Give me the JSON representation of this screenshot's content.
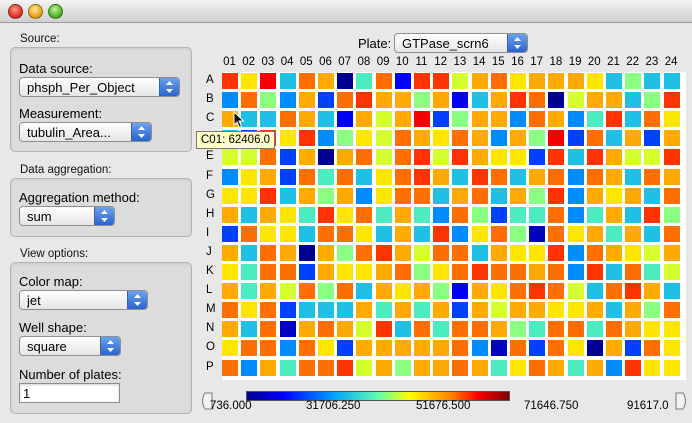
{
  "left_panel": {
    "source": {
      "section_label": "Source:",
      "data_source_label": "Data source:",
      "data_source_value": "phsph_Per_Object",
      "measurement_label": "Measurement:",
      "measurement_value": "tubulin_Area..."
    },
    "aggregation": {
      "section_label": "Data aggregation:",
      "method_label": "Aggregation method:",
      "method_value": "sum"
    },
    "view": {
      "section_label": "View options:",
      "color_map_label": "Color map:",
      "color_map_value": "jet",
      "well_shape_label": "Well shape:",
      "well_shape_value": "square",
      "num_plates_label": "Number of plates:",
      "num_plates_value": "1"
    }
  },
  "plate": {
    "label": "Plate:",
    "value": "GTPase_scrn6",
    "columns": [
      "01",
      "02",
      "03",
      "04",
      "05",
      "06",
      "07",
      "08",
      "09",
      "10",
      "11",
      "12",
      "13",
      "14",
      "15",
      "16",
      "17",
      "18",
      "19",
      "20",
      "21",
      "22",
      "23",
      "24"
    ],
    "rows": [
      "A",
      "B",
      "C",
      "D",
      "E",
      "F",
      "G",
      "H",
      "I",
      "J",
      "K",
      "L",
      "M",
      "N",
      "O",
      "P"
    ],
    "wells": [
      "c9d5ba06b2cc8ab9aaa95755",
      "4b74a3bcaa7a25acb08aa57c",
      "a55ba52a8ad37aa4ba46c5b9",
      "53c9c4798ba9ba4a7d3b5a3a",
      "88b3a0ab8bc8ca993c5ca88c",
      "49a3b6b59bca5cb5ab4ba5ba",
      "99c5a7a49bb5ab5a7c4a9a5b",
      "a5a96c9b6a64b7366b46a5c7",
      "3b995bb95a5c49b71b9a6a5b",
      "a5ba0a7bca8bb5a99c4ba98a",
      "96bb3a99ab79bcbbab4c5b68",
      "a6a8b7b5a9a72a9bcb85bca5",
      "b9b3555a6a6a3a8aa99a5a7b",
      "a5b1aba8c5b6bba76bb6ba99",
      "9bb4b93aaaaab41b3b90a3b9",
      "b4a6bbc8a7aaba69ba6a4c99"
    ],
    "tooltip": "C01: 62406.0",
    "colormap_stops": [
      "#00008f",
      "#0000ff",
      "#00a0ff",
      "#60ffb0",
      "#ffff00",
      "#ff8000",
      "#ff0000",
      "#800000"
    ],
    "colorbar": {
      "ticks": [
        "736.000",
        "31706.250",
        "51676.500",
        "71646.750",
        "91617.0"
      ]
    }
  }
}
